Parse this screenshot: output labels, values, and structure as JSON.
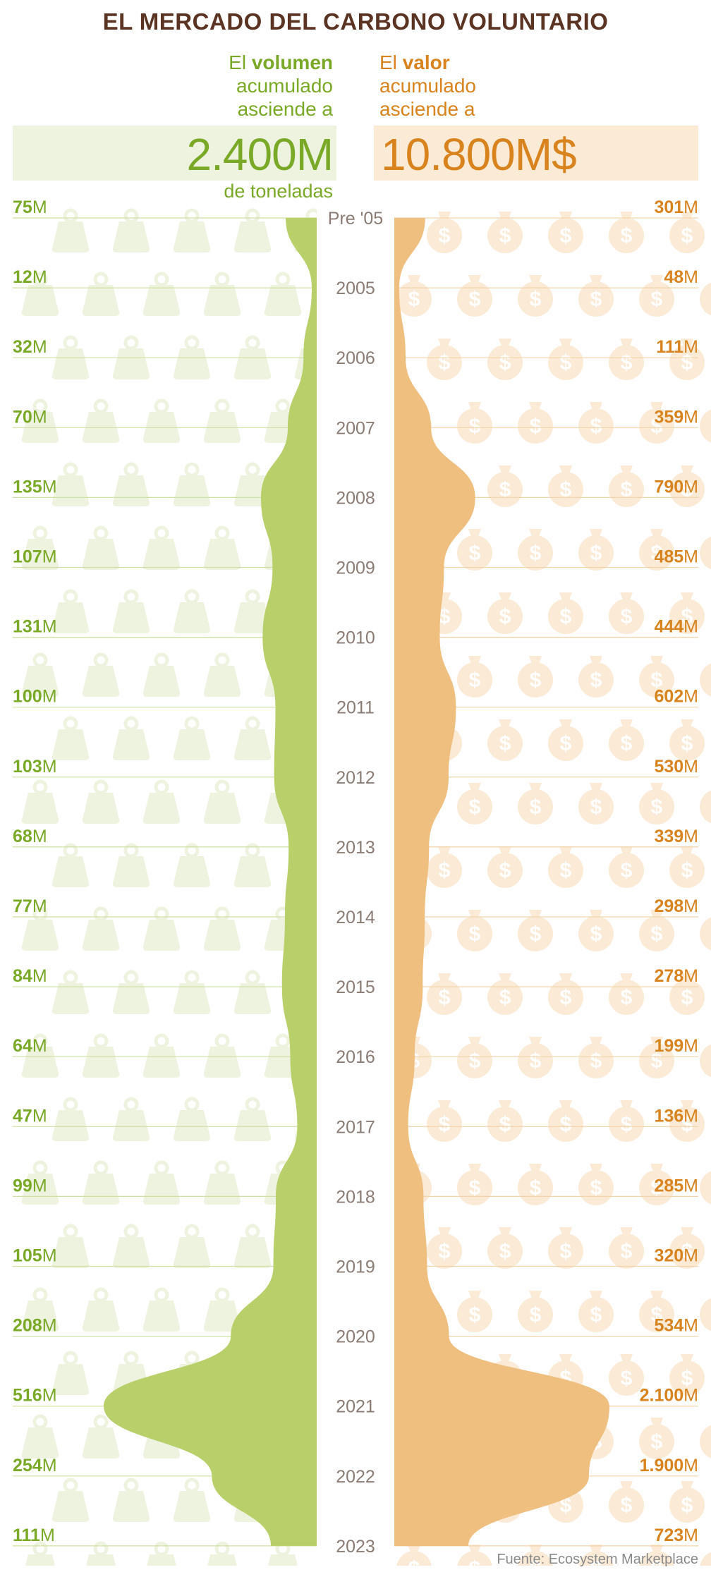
{
  "title": "EL MERCADO DEL CARBONO VOLUNTARIO",
  "volume_block": {
    "line1_prefix": "El ",
    "line1_bold": "volumen",
    "line2": "acumulado",
    "line3": "asciende a",
    "total": "2.400M",
    "unit_note": "de toneladas"
  },
  "value_block": {
    "line1_prefix": "El ",
    "line1_bold": "valor",
    "line2": "acumulado",
    "line3": "asciende a",
    "total": "10.800M$"
  },
  "source": "Fuente: Ecosystem Marketplace",
  "colors": {
    "title": "#5a3322",
    "volume": "#7aa928",
    "volume_area": "#b8cf6a",
    "volume_icons": "#eef3df",
    "value": "#d9831e",
    "value_area": "#efbf80",
    "value_icons": "#fbebd6",
    "year_text": "#8a7c74"
  },
  "icons": {
    "volume": "weight-icon",
    "value": "money-bag-icon"
  },
  "chart_data": {
    "type": "area",
    "categories": [
      "Pre '05",
      "2005",
      "2006",
      "2007",
      "2008",
      "2009",
      "2010",
      "2011",
      "2012",
      "2013",
      "2014",
      "2015",
      "2016",
      "2017",
      "2018",
      "2019",
      "2020",
      "2021",
      "2022",
      "2023"
    ],
    "series": [
      {
        "name": "volumen",
        "side": "left",
        "values": [
          75,
          12,
          32,
          70,
          135,
          107,
          131,
          100,
          103,
          68,
          77,
          84,
          64,
          47,
          99,
          105,
          208,
          516,
          254,
          111
        ],
        "labels": [
          "75",
          "12",
          "32",
          "70",
          "135",
          "107",
          "131",
          "100",
          "103",
          "68",
          "77",
          "84",
          "64",
          "47",
          "99",
          "105",
          "208",
          "516",
          "254",
          "111"
        ],
        "label_unit": "M"
      },
      {
        "name": "valor",
        "side": "right",
        "values": [
          301,
          48,
          111,
          359,
          790,
          485,
          444,
          602,
          530,
          339,
          298,
          278,
          199,
          136,
          285,
          320,
          534,
          2100,
          1900,
          723
        ],
        "labels": [
          "301",
          "48",
          "111",
          "359",
          "790",
          "485",
          "444",
          "602",
          "530",
          "339",
          "298",
          "278",
          "199",
          "136",
          "285",
          "320",
          "534",
          "2.100",
          "1.900",
          "723"
        ],
        "label_unit": "M"
      }
    ]
  }
}
